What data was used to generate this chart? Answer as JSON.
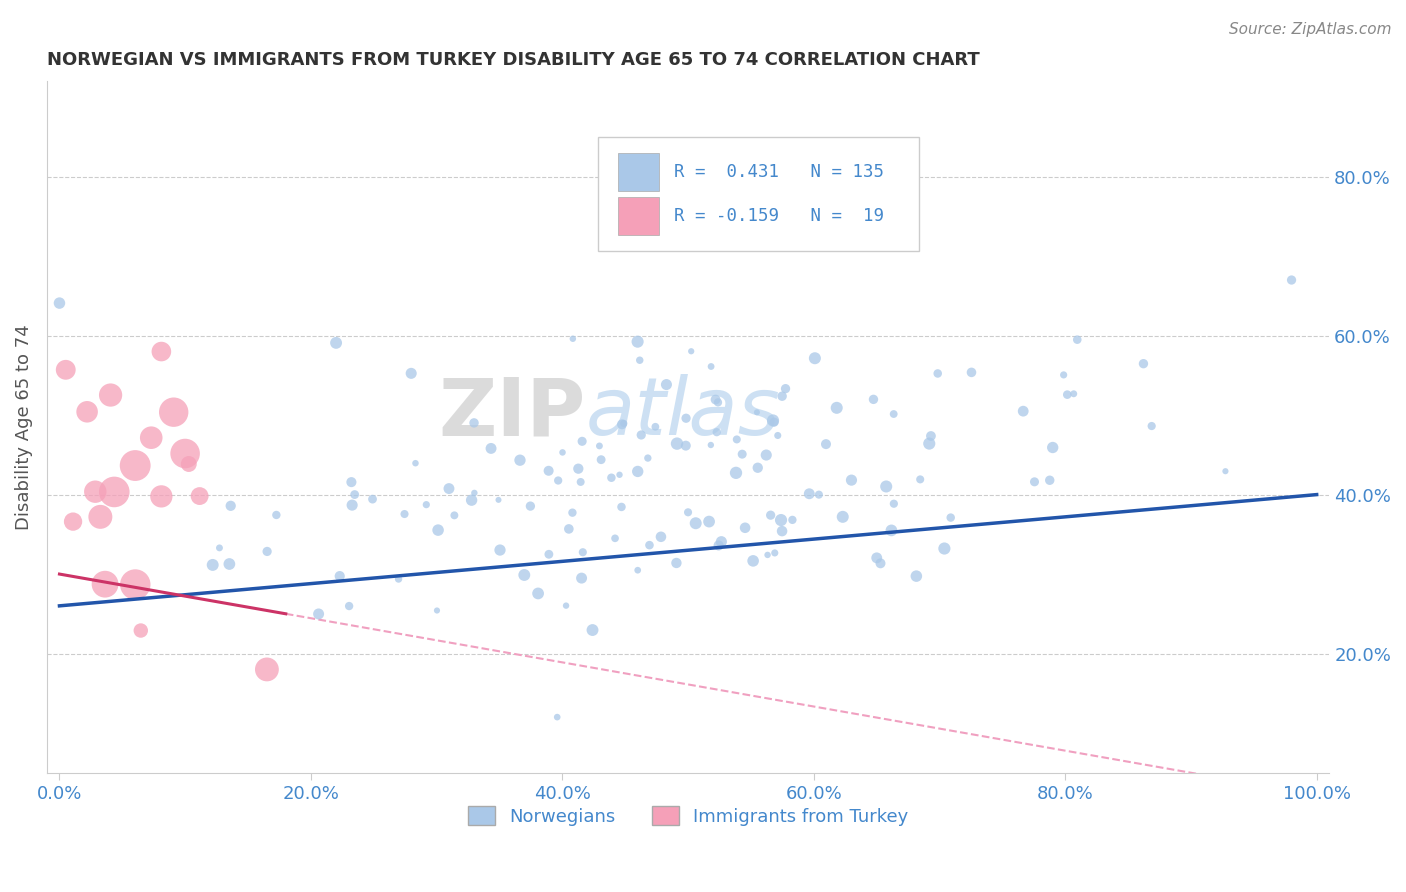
{
  "title": "NORWEGIAN VS IMMIGRANTS FROM TURKEY DISABILITY AGE 65 TO 74 CORRELATION CHART",
  "source": "Source: ZipAtlas.com",
  "ylabel_label": "Disability Age 65 to 74",
  "x_tick_labels": [
    "0.0%",
    "20.0%",
    "40.0%",
    "60.0%",
    "80.0%",
    "100.0%"
  ],
  "x_tick_values": [
    0.0,
    0.2,
    0.4,
    0.6,
    0.8,
    1.0
  ],
  "y_tick_labels": [
    "20.0%",
    "40.0%",
    "60.0%",
    "80.0%"
  ],
  "y_tick_values": [
    0.2,
    0.4,
    0.6,
    0.8
  ],
  "xlim": [
    -0.01,
    1.01
  ],
  "ylim": [
    0.05,
    0.92
  ],
  "norwegian_R": 0.431,
  "norwegian_N": 135,
  "turkey_R": -0.159,
  "turkey_N": 19,
  "norwegian_color": "#aac8e8",
  "turkish_color": "#f5a0b8",
  "norwegian_line_color": "#2255aa",
  "turkish_line_color": "#cc3366",
  "turkish_dashed_color": "#f0a0c0",
  "watermark_zip": "ZIP",
  "watermark_atlas": "atlas",
  "background_color": "#ffffff",
  "grid_color": "#cccccc",
  "title_color": "#333333",
  "axis_label_color": "#4488cc",
  "legend_r_color": "#4488cc"
}
